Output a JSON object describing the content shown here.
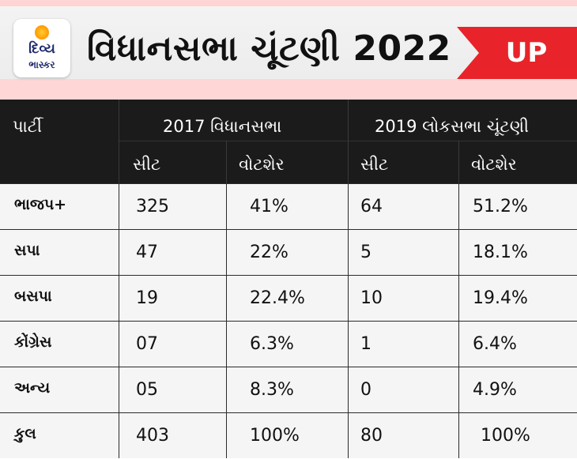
{
  "header": {
    "logo_line1": "દિવ્ય",
    "logo_line2": "ભાસ્કર",
    "title": "વિધાનસભા ચૂંટણી 2022",
    "state_badge": "UP",
    "colors": {
      "badge": "#e8242a",
      "header_bg": "#ececec",
      "pink": "#ffd6d6"
    }
  },
  "table": {
    "party_header": "પાર્ટી",
    "group_2017": "2017 વિધાનસભા",
    "group_2019": "2019 લોકસભા ચૂંટણી",
    "seat_label": "સીટ",
    "voteshare_label": "વોટશેર",
    "rows": [
      {
        "party": "ભાજપ+",
        "s17": "325",
        "v17": "41%",
        "s19": "64",
        "v19": "51.2%"
      },
      {
        "party": "સપા",
        "s17": "47",
        "v17": "22%",
        "s19": "5",
        "v19": "18.1%"
      },
      {
        "party": "બસપા",
        "s17": "19",
        "v17": "22.4%",
        "s19": "10",
        "v19": "19.4%"
      },
      {
        "party": "કોંગ્રેસ",
        "s17": "07",
        "v17": "6.3%",
        "s19": "1",
        "v19": "6.4%"
      },
      {
        "party": "અન્ય",
        "s17": "05",
        "v17": "8.3%",
        "s19": "0",
        "v19": "4.9%"
      },
      {
        "party": "કુલ",
        "s17": "403",
        "v17": "100%",
        "s19": "80",
        "v19": "100%"
      }
    ]
  }
}
